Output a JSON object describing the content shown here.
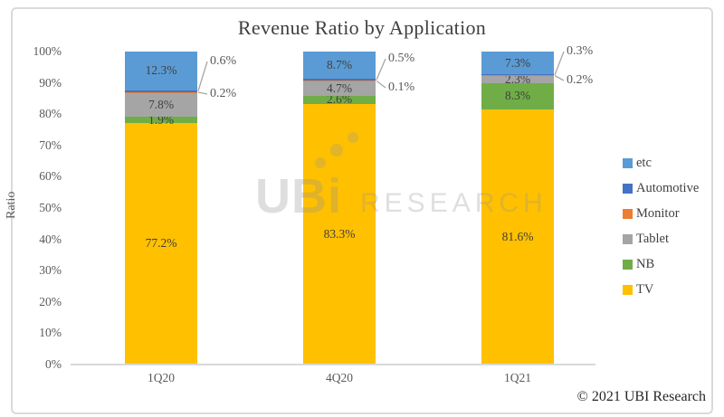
{
  "watermark": {
    "logo": "UBi",
    "text": "RESEARCH"
  },
  "footer": {
    "copyright": "© 2021 UBI Research"
  },
  "chart_data": {
    "type": "bar",
    "stacked": true,
    "percent_stacked": true,
    "title": "Revenue Ratio by Application",
    "ylabel": "Ratio",
    "xlabel": "",
    "categories": [
      "1Q20",
      "4Q20",
      "1Q21"
    ],
    "series": [
      {
        "name": "TV",
        "color": "#FFC000",
        "values": [
          77.2,
          83.3,
          81.6
        ],
        "label_style": "inside"
      },
      {
        "name": "NB",
        "color": "#70AD47",
        "values": [
          1.9,
          2.6,
          8.3
        ],
        "label_style": "inside"
      },
      {
        "name": "Tablet",
        "color": "#A5A5A5",
        "values": [
          7.8,
          4.7,
          2.3
        ],
        "label_style": "inside"
      },
      {
        "name": "Monitor",
        "color": "#ED7D31",
        "values": [
          0.2,
          0.1,
          0.2
        ],
        "label_style": "callout"
      },
      {
        "name": "Automotive",
        "color": "#4472C4",
        "values": [
          0.6,
          0.5,
          0.3
        ],
        "label_style": "callout"
      },
      {
        "name": "etc",
        "color": "#5B9BD5",
        "values": [
          12.3,
          8.7,
          7.3
        ],
        "label_style": "inside"
      }
    ],
    "legend": [
      "etc",
      "Automotive",
      "Monitor",
      "Tablet",
      "NB",
      "TV"
    ],
    "legend_position": "right",
    "yticks": [
      "100%",
      "90%",
      "80%",
      "70%",
      "60%",
      "50%",
      "40%",
      "30%",
      "20%",
      "10%",
      "0%"
    ],
    "ylim": [
      0,
      100
    ],
    "grid": false,
    "data_label_format": "0.0%"
  }
}
